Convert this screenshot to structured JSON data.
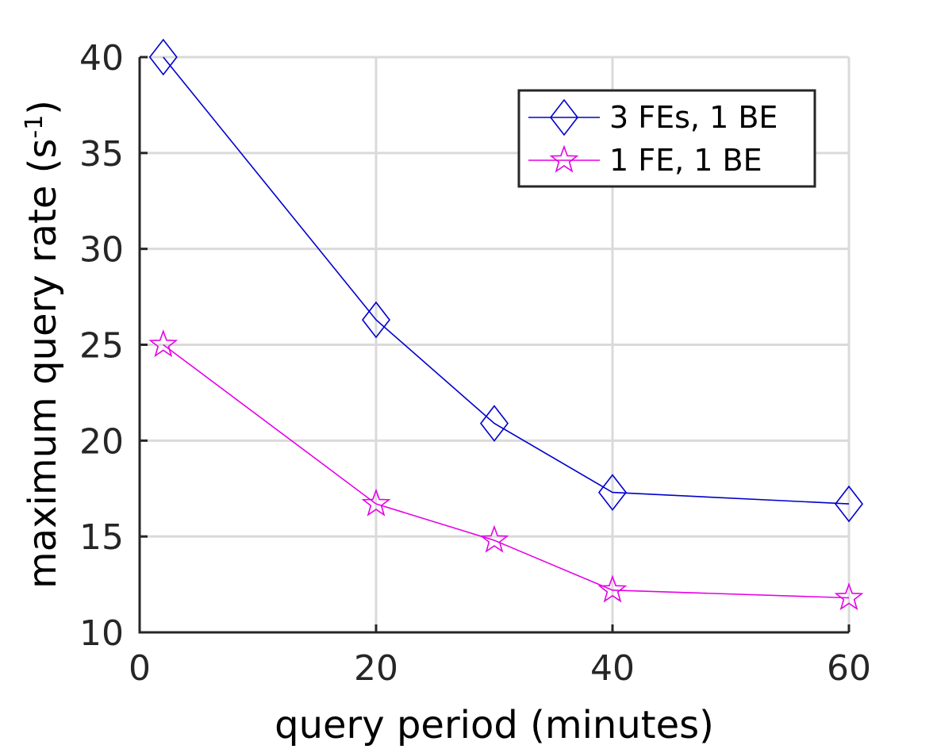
{
  "chart_data": {
    "type": "line",
    "xlabel": "query period (minutes)",
    "ylabel_main": "maximum query rate (s",
    "ylabel_sup": "-1",
    "ylabel_close": ")",
    "xlim": [
      0,
      60
    ],
    "ylim": [
      10,
      40
    ],
    "xticks": [
      0,
      20,
      40,
      60
    ],
    "yticks": [
      10,
      15,
      20,
      25,
      30,
      35,
      40
    ],
    "grid": true,
    "legend_position": "top-right",
    "series": [
      {
        "name": "3 FEs, 1 BE",
        "color": "#0000cc",
        "marker": "diamond",
        "x": [
          2,
          20,
          30,
          40,
          60
        ],
        "y": [
          40.0,
          26.3,
          20.9,
          17.3,
          16.7
        ]
      },
      {
        "name": "1 FE, 1 BE",
        "color": "#e600e6",
        "marker": "star",
        "x": [
          2,
          20,
          30,
          40,
          60
        ],
        "y": [
          25.0,
          16.7,
          14.8,
          12.2,
          11.8
        ]
      }
    ]
  }
}
